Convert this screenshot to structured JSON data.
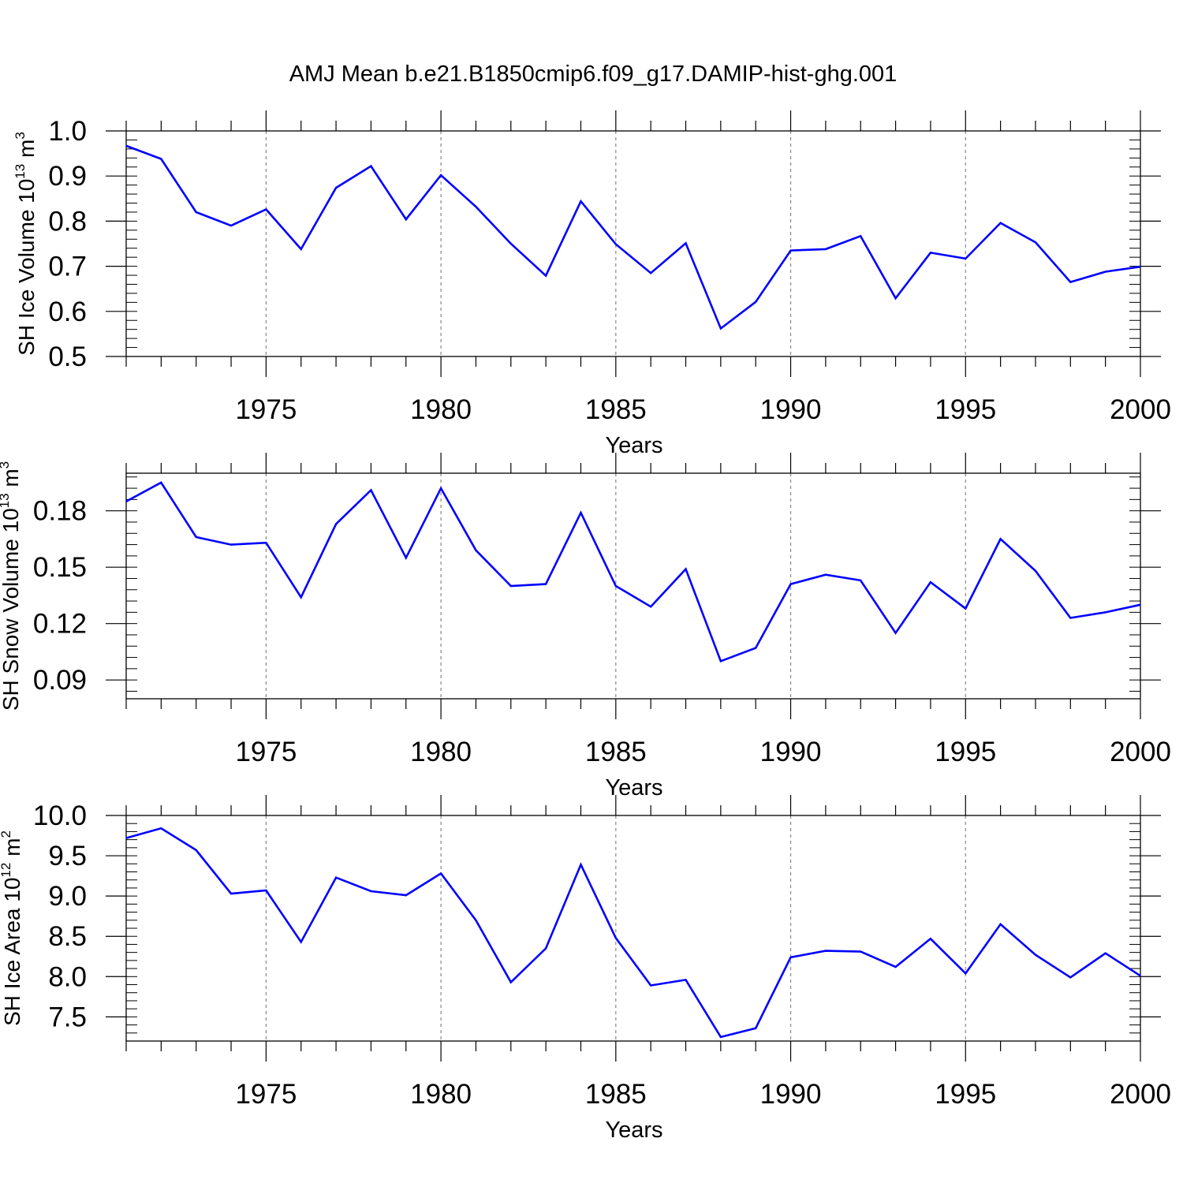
{
  "figure": {
    "title": "AMJ Mean b.e21.B1850cmip6.f09_g17.DAMIP-hist-ghg.001",
    "line_color": "#0000ff",
    "grid_color": "#888888"
  },
  "chart_data": [
    {
      "type": "line",
      "xlabel": "Years",
      "ylabel": {
        "prefix": "SH Ice Volume 10",
        "exp": "13",
        "mid": " m",
        "unit_exp": "3"
      },
      "xlim": [
        1971,
        2000
      ],
      "ylim": [
        0.5,
        1.0
      ],
      "x_ticks": [
        1975,
        1980,
        1985,
        1990,
        1995,
        2000
      ],
      "x_tick_labels": [
        "1975",
        "1980",
        "1985",
        "1990",
        "1995",
        "2000"
      ],
      "y_ticks": [
        0.5,
        0.6,
        0.7,
        0.8,
        0.9,
        1.0
      ],
      "y_tick_labels": [
        "0.5",
        "0.6",
        "0.7",
        "0.8",
        "0.9",
        "1.0"
      ],
      "grid": "vertical dashed at major x ticks",
      "x": [
        1971,
        1972,
        1973,
        1974,
        1975,
        1976,
        1977,
        1978,
        1979,
        1980,
        1981,
        1982,
        1983,
        1984,
        1985,
        1986,
        1987,
        1988,
        1989,
        1990,
        1991,
        1992,
        1993,
        1994,
        1995,
        1996,
        1997,
        1998,
        1999,
        2000
      ],
      "series": [
        {
          "values": [
            0.967,
            0.938,
            0.82,
            0.79,
            0.826,
            0.738,
            0.874,
            0.922,
            0.804,
            0.902,
            0.832,
            0.75,
            0.679,
            0.844,
            0.749,
            0.685,
            0.751,
            0.562,
            0.621,
            0.735,
            0.738,
            0.767,
            0.629,
            0.73,
            0.717,
            0.796,
            0.753,
            0.665,
            0.688,
            0.699
          ]
        }
      ]
    },
    {
      "type": "line",
      "xlabel": "Years",
      "ylabel": {
        "prefix": "SH Snow Volume 10",
        "exp": "13",
        "mid": " m",
        "unit_exp": "3"
      },
      "xlim": [
        1971,
        2000
      ],
      "ylim": [
        0.08,
        0.2
      ],
      "x_ticks": [
        1975,
        1980,
        1985,
        1990,
        1995,
        2000
      ],
      "x_tick_labels": [
        "1975",
        "1980",
        "1985",
        "1990",
        "1995",
        "2000"
      ],
      "y_ticks": [
        0.09,
        0.12,
        0.15,
        0.18
      ],
      "y_tick_labels": [
        "0.09",
        "0.12",
        "0.15",
        "0.18"
      ],
      "grid": "vertical dashed at major x ticks",
      "x": [
        1971,
        1972,
        1973,
        1974,
        1975,
        1976,
        1977,
        1978,
        1979,
        1980,
        1981,
        1982,
        1983,
        1984,
        1985,
        1986,
        1987,
        1988,
        1989,
        1990,
        1991,
        1992,
        1993,
        1994,
        1995,
        1996,
        1997,
        1998,
        1999,
        2000
      ],
      "series": [
        {
          "values": [
            0.185,
            0.195,
            0.166,
            0.162,
            0.163,
            0.134,
            0.173,
            0.191,
            0.155,
            0.192,
            0.159,
            0.14,
            0.141,
            0.179,
            0.14,
            0.129,
            0.149,
            0.1,
            0.107,
            0.141,
            0.146,
            0.143,
            0.115,
            0.142,
            0.128,
            0.165,
            0.148,
            0.123,
            0.126,
            0.13
          ]
        }
      ]
    },
    {
      "type": "line",
      "xlabel": "Years",
      "ylabel": {
        "prefix": "SH Ice Area 10",
        "exp": "12",
        "mid": " m",
        "unit_exp": "2"
      },
      "xlim": [
        1971,
        2000
      ],
      "ylim": [
        7.2,
        10.0
      ],
      "x_ticks": [
        1975,
        1980,
        1985,
        1990,
        1995,
        2000
      ],
      "x_tick_labels": [
        "1975",
        "1980",
        "1985",
        "1990",
        "1995",
        "2000"
      ],
      "y_ticks": [
        7.5,
        8.0,
        8.5,
        9.0,
        9.5,
        10.0
      ],
      "y_tick_labels": [
        "7.5",
        "8.0",
        "8.5",
        "9.0",
        "9.5",
        "10.0"
      ],
      "grid": "vertical dashed at major x ticks",
      "x": [
        1971,
        1972,
        1973,
        1974,
        1975,
        1976,
        1977,
        1978,
        1979,
        1980,
        1981,
        1982,
        1983,
        1984,
        1985,
        1986,
        1987,
        1988,
        1989,
        1990,
        1991,
        1992,
        1993,
        1994,
        1995,
        1996,
        1997,
        1998,
        1999,
        2000
      ],
      "series": [
        {
          "values": [
            9.72,
            9.84,
            9.57,
            9.03,
            9.07,
            8.43,
            9.23,
            9.06,
            9.01,
            9.28,
            8.7,
            7.93,
            8.35,
            9.39,
            8.48,
            7.89,
            7.96,
            7.25,
            7.36,
            8.24,
            8.32,
            8.31,
            8.12,
            8.47,
            8.04,
            8.65,
            8.27,
            7.99,
            8.29,
            8.01
          ]
        }
      ]
    }
  ]
}
